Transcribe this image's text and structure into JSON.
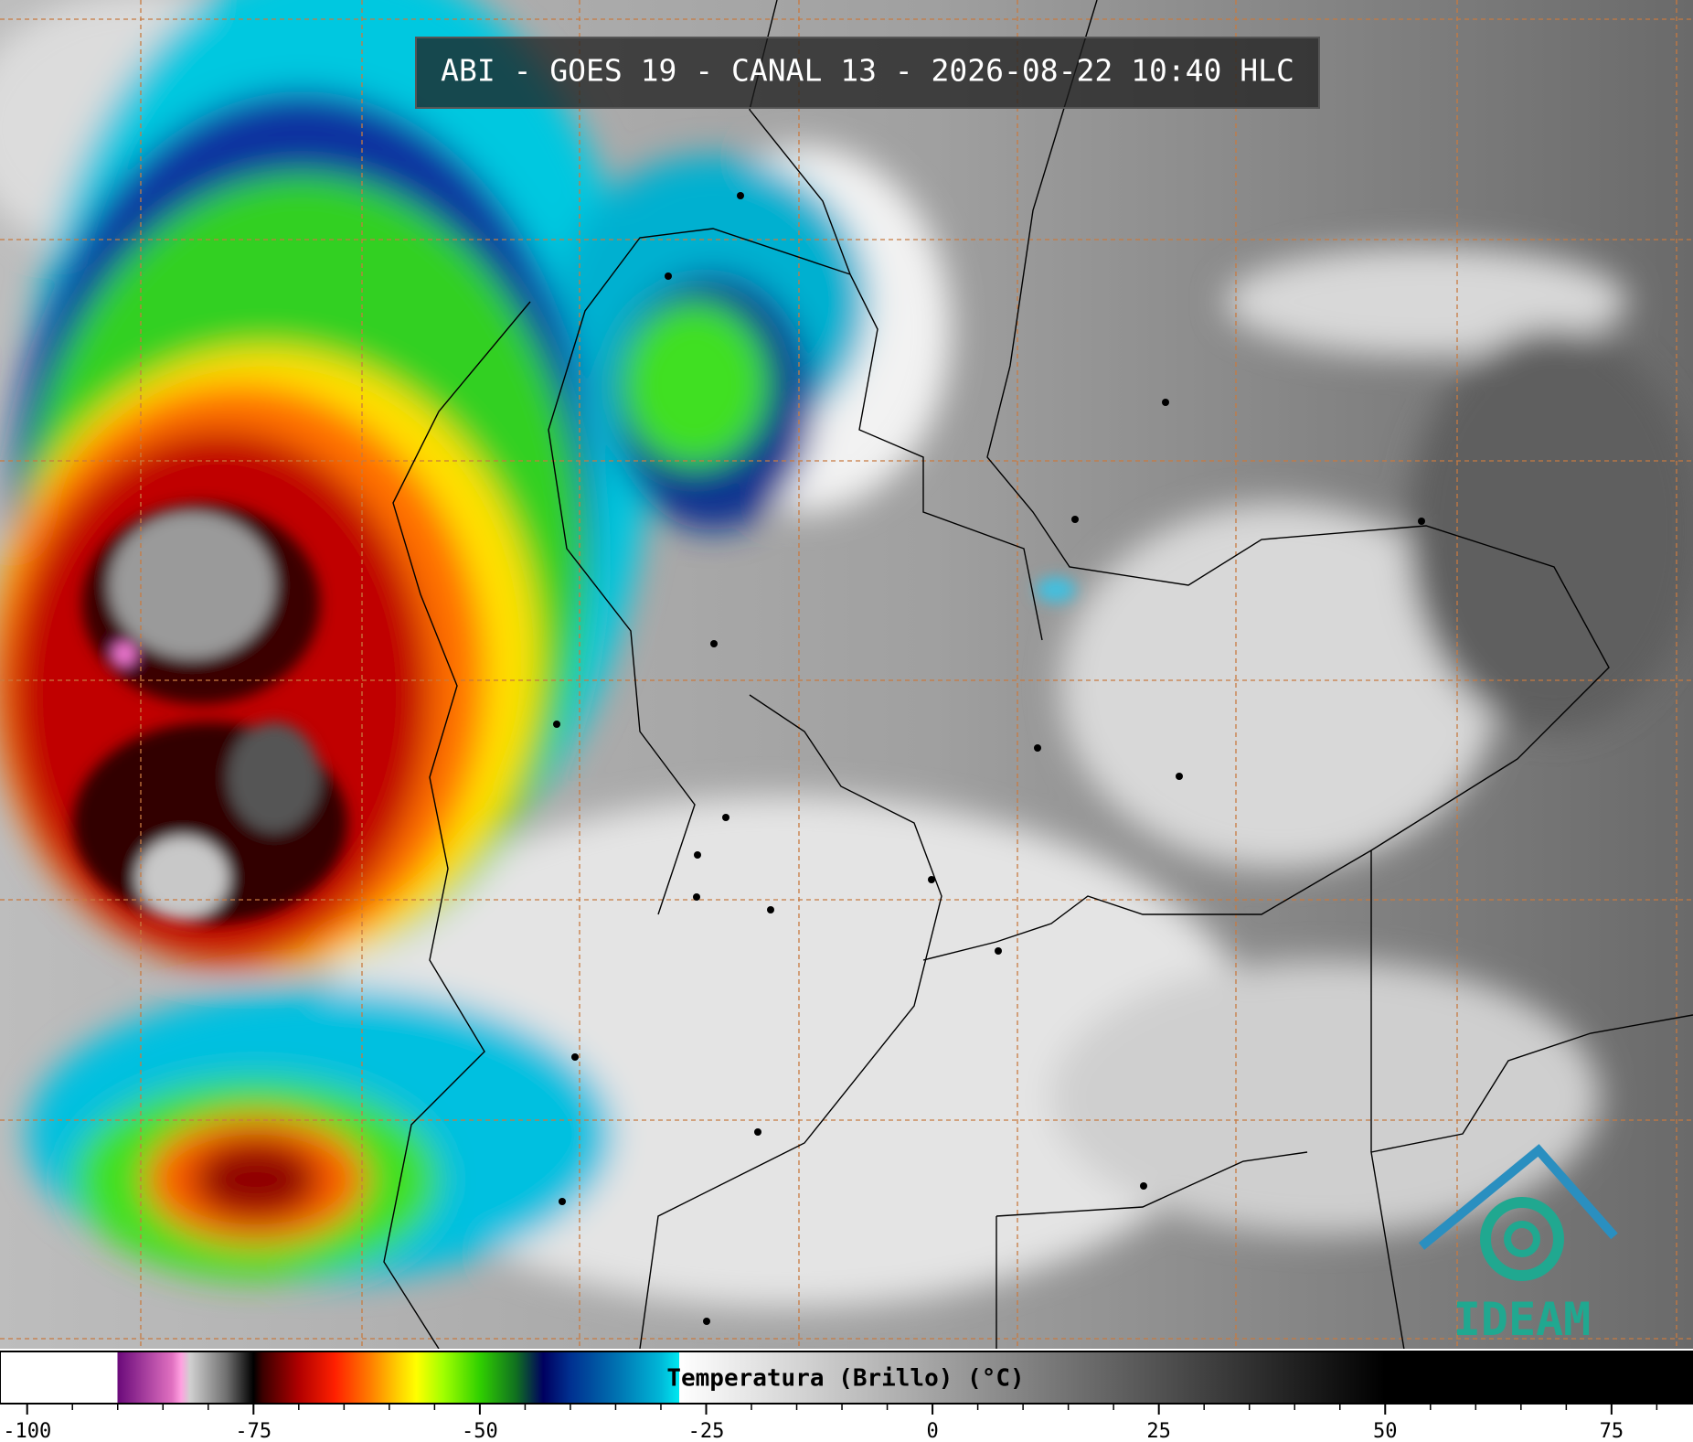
{
  "header": {
    "title": "ABI - GOES 19 - CANAL 13 - 2026-08-22 10:40 HLC"
  },
  "logo": {
    "text": "IDEAM"
  },
  "chart_data": {
    "type": "colorbar",
    "title": "Temperatura (Brillo) (°C)",
    "xlim": [
      -103,
      84
    ],
    "xticks": [
      -100,
      -75,
      -50,
      -25,
      0,
      25,
      50,
      75
    ],
    "xticks_minor": [
      -95,
      -90,
      -85,
      -80,
      -70,
      -65,
      -60,
      -55,
      -45,
      -40,
      -35,
      -30,
      -20,
      -15,
      -10,
      -5,
      5,
      10,
      15,
      20,
      30,
      35,
      40,
      45,
      55,
      60,
      65,
      70,
      80
    ],
    "stops": [
      {
        "value": -103,
        "color": "#ffffff"
      },
      {
        "value": -90,
        "color": "#ffffff"
      },
      {
        "value": -90,
        "color": "#6a0a7a"
      },
      {
        "value": -84,
        "color": "#e070c0"
      },
      {
        "value": -83,
        "color": "#ffa0e0"
      },
      {
        "value": -82,
        "color": "#d0d0d0"
      },
      {
        "value": -78,
        "color": "#707070"
      },
      {
        "value": -75,
        "color": "#000000"
      },
      {
        "value": -74,
        "color": "#3a0000"
      },
      {
        "value": -70,
        "color": "#b00000"
      },
      {
        "value": -66,
        "color": "#ff2000"
      },
      {
        "value": -62,
        "color": "#ff8000"
      },
      {
        "value": -59,
        "color": "#ffd000"
      },
      {
        "value": -57,
        "color": "#ffff00"
      },
      {
        "value": -54,
        "color": "#a0ff00"
      },
      {
        "value": -50,
        "color": "#30d000"
      },
      {
        "value": -46,
        "color": "#107020"
      },
      {
        "value": -43,
        "color": "#000060"
      },
      {
        "value": -40,
        "color": "#003090"
      },
      {
        "value": -35,
        "color": "#0070b0"
      },
      {
        "value": -30,
        "color": "#00b8d8"
      },
      {
        "value": -28,
        "color": "#00e8f0"
      },
      {
        "value": -28,
        "color": "#ffffff"
      },
      {
        "value": 50,
        "color": "#000000"
      },
      {
        "value": 84,
        "color": "#000000"
      }
    ]
  }
}
